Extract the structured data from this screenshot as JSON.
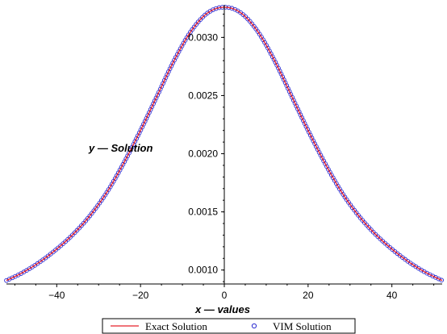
{
  "chart_data": {
    "type": "line",
    "xlabel": "x — values",
    "ylabel": "y — Solution",
    "xlim": [
      -52,
      52
    ],
    "ylim": [
      0.00088,
      0.00328
    ],
    "x_ticks": [
      -40,
      -20,
      0,
      20,
      40
    ],
    "x_tick_labels": [
      "−40",
      "−20",
      "0",
      "20",
      "40"
    ],
    "y_ticks": [
      0.001,
      0.0015,
      0.002,
      0.0025,
      0.003
    ],
    "y_tick_labels": [
      "0.0010",
      "0.0015",
      "0.0020",
      "0.0025",
      "0.0030"
    ],
    "grid": false,
    "legend_position": "bottom",
    "colors": {
      "exact": "#e8202a",
      "vim": "#2a2ad0"
    },
    "series": [
      {
        "name": "Exact Solution",
        "style": "line",
        "x": [
          -52,
          -48,
          -44,
          -40,
          -36,
          -32,
          -28,
          -24,
          -20,
          -16,
          -12,
          -8,
          -4,
          0,
          4,
          8,
          12,
          16,
          20,
          24,
          28,
          32,
          36,
          40,
          44,
          48,
          52
        ],
        "values": [
          0.00091,
          0.00098,
          0.00107,
          0.00118,
          0.00131,
          0.00147,
          0.00167,
          0.00192,
          0.0022,
          0.0025,
          0.0028,
          0.00305,
          0.00321,
          0.00326,
          0.00321,
          0.00305,
          0.0028,
          0.0025,
          0.0022,
          0.00192,
          0.00167,
          0.00147,
          0.00131,
          0.00118,
          0.00107,
          0.00098,
          0.00091
        ]
      },
      {
        "name": "VIM Solution",
        "style": "markers",
        "x": [
          -52,
          -48,
          -44,
          -40,
          -36,
          -32,
          -28,
          -24,
          -20,
          -16,
          -12,
          -8,
          -4,
          0,
          4,
          8,
          12,
          16,
          20,
          24,
          28,
          32,
          36,
          40,
          44,
          48,
          52
        ],
        "values": [
          0.00091,
          0.00098,
          0.00107,
          0.00118,
          0.00131,
          0.00147,
          0.00167,
          0.00192,
          0.0022,
          0.0025,
          0.0028,
          0.00305,
          0.00321,
          0.00326,
          0.00321,
          0.00305,
          0.0028,
          0.0025,
          0.0022,
          0.00192,
          0.00167,
          0.00147,
          0.00131,
          0.00118,
          0.00107,
          0.00098,
          0.00091
        ]
      }
    ]
  }
}
